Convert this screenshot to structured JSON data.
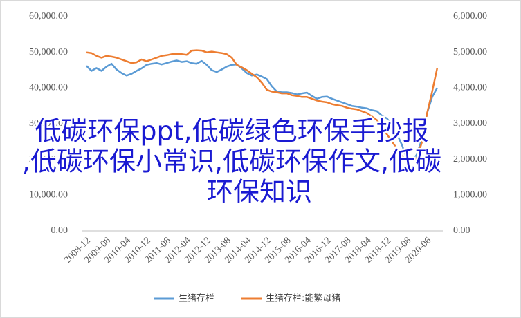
{
  "chart_data": {
    "type": "line",
    "categories": [
      "2008-12",
      null,
      null,
      null,
      "2009-08",
      null,
      null,
      null,
      "2010-04",
      null,
      null,
      null,
      "2010-12",
      null,
      null,
      null,
      "2011-08",
      null,
      null,
      null,
      "2012-04",
      null,
      null,
      null,
      "2012-12",
      null,
      null,
      null,
      "2013-08",
      null,
      null,
      null,
      "2014-04",
      null,
      null,
      null,
      "2014-12",
      null,
      null,
      null,
      "2015-08",
      null,
      null,
      null,
      "2016-04",
      null,
      null,
      null,
      "2016-12",
      null,
      null,
      null,
      "2017-08",
      null,
      null,
      null,
      "2018-04",
      null,
      null,
      null,
      "2018-12",
      null,
      null,
      null,
      "2019-08",
      null,
      null,
      null,
      "2020-06",
      null,
      null
    ],
    "series": [
      {
        "name": "生猪存栏",
        "color": "#5b9bd5",
        "values": [
          46200,
          44800,
          45600,
          44800,
          46000,
          46800,
          45200,
          44200,
          43500,
          44000,
          44800,
          45500,
          46500,
          46800,
          47000,
          46600,
          47000,
          47400,
          47700,
          47300,
          47500,
          47000,
          46800,
          47600,
          46500,
          45000,
          44500,
          45200,
          46000,
          46500,
          46600,
          45500,
          44200,
          43500,
          43800,
          43200,
          42500,
          40500,
          39000,
          38800,
          38800,
          38600,
          38200,
          38500,
          38700,
          37800,
          37000,
          37500,
          37600,
          37000,
          36500,
          36000,
          35500,
          35000,
          34800,
          34500,
          34300,
          33800,
          33500,
          32200,
          31500,
          29500,
          27000,
          24000,
          20000,
          19500,
          21500,
          26000,
          33000,
          37500,
          40000
        ]
      },
      {
        "name": "生猪存栏:能繁母猪",
        "color": "#ed7d31",
        "axis": "y2",
        "values": [
          5000,
          4980,
          4900,
          4850,
          4900,
          4880,
          4850,
          4800,
          4750,
          4700,
          4720,
          4800,
          4750,
          4800,
          4850,
          4900,
          4920,
          4950,
          4950,
          4950,
          4930,
          5050,
          5060,
          5050,
          5000,
          5020,
          5000,
          4980,
          4950,
          4850,
          4650,
          4580,
          4500,
          4400,
          4300,
          4150,
          3950,
          3900,
          3880,
          3850,
          3850,
          3800,
          3780,
          3750,
          3750,
          3700,
          3650,
          3620,
          3600,
          3550,
          3520,
          3500,
          3450,
          3420,
          3400,
          3350,
          3300,
          3200,
          3100,
          2900,
          2700,
          2500,
          2300,
          2100,
          1950,
          1950,
          2050,
          2500,
          3300,
          3900,
          4550
        ]
      }
    ],
    "ylim": [
      0,
      60000
    ],
    "yticks": [
      {
        "value": 0,
        "label": "0.00"
      },
      {
        "value": 10000,
        "label": "10,000.00"
      },
      {
        "value": 20000,
        "label": "20,000.00"
      },
      {
        "value": 30000,
        "label": "30,000.00"
      },
      {
        "value": 40000,
        "label": "40,000.00"
      },
      {
        "value": 50000,
        "label": "50,000.00"
      },
      {
        "value": 60000,
        "label": "60,000.00"
      }
    ],
    "y2lim": [
      0,
      6000
    ],
    "y2ticks": [
      {
        "value": 0,
        "label": "0.00"
      },
      {
        "value": 1000,
        "label": "1,000.00"
      },
      {
        "value": 2000,
        "label": "2,000.00"
      },
      {
        "value": 3000,
        "label": "3,000.00"
      },
      {
        "value": 4000,
        "label": "4,000.00"
      },
      {
        "value": 5000,
        "label": "5,000.00"
      },
      {
        "value": 6000,
        "label": "6,000.00"
      }
    ],
    "annotation_lines": [
      "低碳环保ppt,低碳绿色环保手抄报",
      ",低碳环保小常识,低碳环保作文,低碳",
      "环保知识"
    ]
  }
}
